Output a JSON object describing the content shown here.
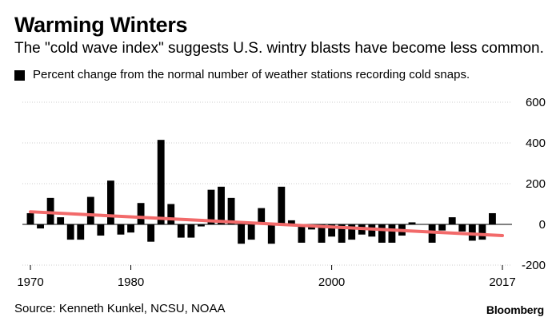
{
  "title": "Warming Winters",
  "subtitle": "The \"cold wave index\" suggests U.S. wintry blasts have become less common.",
  "source": "Source: Kenneth Kunkel, NCSU, NOAA",
  "brand": "Bloomberg",
  "colors": {
    "bars": "#000000",
    "trend": "#f26a6a",
    "grid": "#cccccc"
  },
  "chart_data": {
    "type": "bar",
    "legend": [
      "Percent change from the normal number of weather stations recording cold snaps."
    ],
    "x_ticks": [
      "1970",
      "1980",
      "2000",
      "2017"
    ],
    "y_ticks": [
      "600",
      "400",
      "200",
      "0",
      "-200"
    ],
    "ylim": [
      -200,
      600
    ],
    "xlim": [
      1970,
      2017
    ],
    "years": [
      1970,
      1971,
      1972,
      1973,
      1974,
      1975,
      1976,
      1977,
      1978,
      1979,
      1980,
      1981,
      1982,
      1983,
      1984,
      1985,
      1986,
      1987,
      1988,
      1989,
      1990,
      1991,
      1992,
      1993,
      1994,
      1995,
      1996,
      1997,
      1998,
      1999,
      2000,
      2001,
      2002,
      2003,
      2004,
      2005,
      2006,
      2007,
      2008,
      2009,
      2010,
      2011,
      2012,
      2013,
      2014,
      2015,
      2016,
      2017
    ],
    "values": [
      55,
      -20,
      130,
      35,
      -75,
      -75,
      135,
      -55,
      215,
      -50,
      -40,
      105,
      -85,
      415,
      100,
      -65,
      -65,
      -10,
      170,
      185,
      130,
      -95,
      -75,
      80,
      -95,
      185,
      20,
      -90,
      -25,
      -90,
      -60,
      -90,
      -75,
      -50,
      -60,
      -90,
      -90,
      -55,
      10,
      0,
      -90,
      -30,
      35,
      -35,
      -80,
      -75,
      55,
      0
    ],
    "trend": {
      "start": [
        1970,
        62
      ],
      "end": [
        2017,
        -55
      ]
    }
  }
}
